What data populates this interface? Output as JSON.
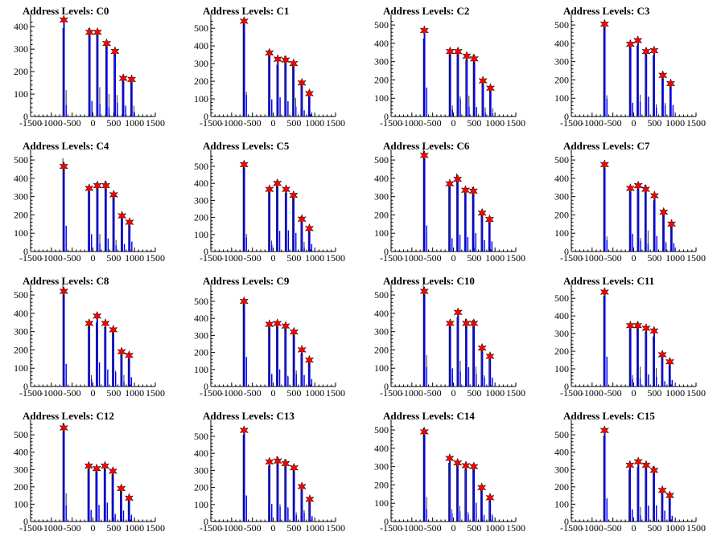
{
  "colors": {
    "bar": "#0000ff",
    "trace": "#000000",
    "marker": "#ff0000",
    "axis": "#000000"
  },
  "chart_data": [
    {
      "type": "bar",
      "title": "Address Levels: C0",
      "xlim": [
        -1500,
        1500
      ],
      "ylim": [
        0,
        440
      ],
      "xticks": [
        "-1500",
        "-1000",
        "-500",
        "0",
        "500",
        "1000",
        "1500"
      ],
      "yticks": [
        "0",
        "100",
        "200",
        "300",
        "400"
      ],
      "peaks": [
        {
          "x": -700,
          "y": 430
        },
        {
          "x": -80,
          "y": 375
        },
        {
          "x": 110,
          "y": 375
        },
        {
          "x": 330,
          "y": 325
        },
        {
          "x": 530,
          "y": 290
        },
        {
          "x": 730,
          "y": 170
        },
        {
          "x": 930,
          "y": 165
        }
      ]
    },
    {
      "type": "bar",
      "title": "Address Levels: C1",
      "xlim": [
        -1500,
        1500
      ],
      "ylim": [
        0,
        560
      ],
      "xticks": [
        "-1500",
        "-1000",
        "-500",
        "0",
        "500",
        "1000",
        "1500"
      ],
      "yticks": [
        "0",
        "100",
        "200",
        "300",
        "400",
        "500"
      ],
      "peaks": [
        {
          "x": -700,
          "y": 540
        },
        {
          "x": -90,
          "y": 360
        },
        {
          "x": 110,
          "y": 325
        },
        {
          "x": 300,
          "y": 320
        },
        {
          "x": 490,
          "y": 300
        },
        {
          "x": 690,
          "y": 190
        },
        {
          "x": 870,
          "y": 130
        }
      ]
    },
    {
      "type": "bar",
      "title": "Address Levels: C2",
      "xlim": [
        -1500,
        1500
      ],
      "ylim": [
        0,
        540
      ],
      "xticks": [
        "-1500",
        "-1000",
        "-500",
        "0",
        "500",
        "1000",
        "1500"
      ],
      "yticks": [
        "0",
        "100",
        "200",
        "300",
        "400",
        "500"
      ],
      "peaks": [
        {
          "x": -700,
          "y": 470
        },
        {
          "x": -80,
          "y": 355
        },
        {
          "x": 110,
          "y": 355
        },
        {
          "x": 320,
          "y": 330
        },
        {
          "x": 500,
          "y": 315
        },
        {
          "x": 710,
          "y": 195
        },
        {
          "x": 890,
          "y": 155
        }
      ]
    },
    {
      "type": "bar",
      "title": "Address Levels: C3",
      "xlim": [
        -1500,
        1500
      ],
      "ylim": [
        0,
        540
      ],
      "xticks": [
        "-1500",
        "-1000",
        "-500",
        "0",
        "500",
        "1000",
        "1500"
      ],
      "yticks": [
        "0",
        "100",
        "200",
        "300",
        "400",
        "500"
      ],
      "peaks": [
        {
          "x": -700,
          "y": 505
        },
        {
          "x": -80,
          "y": 395
        },
        {
          "x": 100,
          "y": 415
        },
        {
          "x": 300,
          "y": 355
        },
        {
          "x": 490,
          "y": 360
        },
        {
          "x": 700,
          "y": 225
        },
        {
          "x": 890,
          "y": 180
        }
      ]
    },
    {
      "type": "bar",
      "title": "Address Levels: C4",
      "xlim": [
        -1500,
        1500
      ],
      "ylim": [
        0,
        540
      ],
      "xticks": [
        "-1500",
        "-1000",
        "-500",
        "0",
        "500",
        "1000",
        "1500"
      ],
      "yticks": [
        "0",
        "100",
        "200",
        "300",
        "400",
        "500"
      ],
      "peaks": [
        {
          "x": -700,
          "y": 465
        },
        {
          "x": -90,
          "y": 345
        },
        {
          "x": 110,
          "y": 360
        },
        {
          "x": 310,
          "y": 360
        },
        {
          "x": 500,
          "y": 310
        },
        {
          "x": 700,
          "y": 195
        },
        {
          "x": 880,
          "y": 160
        }
      ]
    },
    {
      "type": "bar",
      "title": "Address Levels: C5",
      "xlim": [
        -1500,
        1500
      ],
      "ylim": [
        0,
        580
      ],
      "xticks": [
        "-1500",
        "-1000",
        "-500",
        "0",
        "500",
        "1000",
        "1500"
      ],
      "yticks": [
        "0",
        "100",
        "200",
        "300",
        "400",
        "500"
      ],
      "peaks": [
        {
          "x": -700,
          "y": 510
        },
        {
          "x": -90,
          "y": 365
        },
        {
          "x": 100,
          "y": 400
        },
        {
          "x": 310,
          "y": 365
        },
        {
          "x": 490,
          "y": 330
        },
        {
          "x": 690,
          "y": 190
        },
        {
          "x": 870,
          "y": 135
        }
      ]
    },
    {
      "type": "bar",
      "title": "Address Levels: C6",
      "xlim": [
        -1500,
        1500
      ],
      "ylim": [
        0,
        540
      ],
      "xticks": [
        "-1500",
        "-1000",
        "-500",
        "0",
        "500",
        "1000",
        "1500"
      ],
      "yticks": [
        "0",
        "100",
        "200",
        "300",
        "400",
        "500"
      ],
      "peaks": [
        {
          "x": -700,
          "y": 525
        },
        {
          "x": -90,
          "y": 370
        },
        {
          "x": 100,
          "y": 395
        },
        {
          "x": 290,
          "y": 335
        },
        {
          "x": 480,
          "y": 330
        },
        {
          "x": 690,
          "y": 210
        },
        {
          "x": 870,
          "y": 175
        }
      ]
    },
    {
      "type": "bar",
      "title": "Address Levels: C7",
      "xlim": [
        -1500,
        1500
      ],
      "ylim": [
        0,
        540
      ],
      "xticks": [
        "-1500",
        "-1000",
        "-500",
        "0",
        "500",
        "1000",
        "1500"
      ],
      "yticks": [
        "0",
        "100",
        "200",
        "300",
        "400",
        "500"
      ],
      "peaks": [
        {
          "x": -700,
          "y": 475
        },
        {
          "x": -80,
          "y": 345
        },
        {
          "x": 110,
          "y": 360
        },
        {
          "x": 290,
          "y": 340
        },
        {
          "x": 500,
          "y": 305
        },
        {
          "x": 720,
          "y": 215
        },
        {
          "x": 910,
          "y": 150
        }
      ]
    },
    {
      "type": "bar",
      "title": "Address Levels: C8",
      "xlim": [
        -1500,
        1500
      ],
      "ylim": [
        0,
        540
      ],
      "xticks": [
        "-1500",
        "-1000",
        "-500",
        "0",
        "500",
        "1000",
        "1500"
      ],
      "yticks": [
        "0",
        "100",
        "200",
        "300",
        "400",
        "500"
      ],
      "peaks": [
        {
          "x": -700,
          "y": 520
        },
        {
          "x": -90,
          "y": 345
        },
        {
          "x": 100,
          "y": 385
        },
        {
          "x": 300,
          "y": 345
        },
        {
          "x": 490,
          "y": 310
        },
        {
          "x": 690,
          "y": 190
        },
        {
          "x": 870,
          "y": 170
        }
      ]
    },
    {
      "type": "bar",
      "title": "Address Levels: C9",
      "xlim": [
        -1500,
        1500
      ],
      "ylim": [
        0,
        580
      ],
      "xticks": [
        "-1500",
        "-1000",
        "-500",
        "0",
        "500",
        "1000",
        "1500"
      ],
      "yticks": [
        "0",
        "100",
        "200",
        "300",
        "400",
        "500"
      ],
      "peaks": [
        {
          "x": -700,
          "y": 500
        },
        {
          "x": -90,
          "y": 365
        },
        {
          "x": 100,
          "y": 370
        },
        {
          "x": 300,
          "y": 355
        },
        {
          "x": 500,
          "y": 320
        },
        {
          "x": 690,
          "y": 215
        },
        {
          "x": 870,
          "y": 155
        }
      ]
    },
    {
      "type": "bar",
      "title": "Address Levels: C10",
      "xlim": [
        -1500,
        1500
      ],
      "ylim": [
        0,
        540
      ],
      "xticks": [
        "-1500",
        "-1000",
        "-500",
        "0",
        "500",
        "1000",
        "1500"
      ],
      "yticks": [
        "0",
        "100",
        "200",
        "300",
        "400",
        "500"
      ],
      "peaks": [
        {
          "x": -700,
          "y": 520
        },
        {
          "x": -80,
          "y": 345
        },
        {
          "x": 110,
          "y": 405
        },
        {
          "x": 310,
          "y": 345
        },
        {
          "x": 490,
          "y": 345
        },
        {
          "x": 690,
          "y": 210
        },
        {
          "x": 880,
          "y": 165
        }
      ]
    },
    {
      "type": "bar",
      "title": "Address Levels: C11",
      "xlim": [
        -1500,
        1500
      ],
      "ylim": [
        0,
        560
      ],
      "xticks": [
        "-1500",
        "-1000",
        "-500",
        "0",
        "500",
        "1000",
        "1500"
      ],
      "yticks": [
        "0",
        "100",
        "200",
        "300",
        "400",
        "500"
      ],
      "peaks": [
        {
          "x": -700,
          "y": 535
        },
        {
          "x": -80,
          "y": 345
        },
        {
          "x": 100,
          "y": 345
        },
        {
          "x": 300,
          "y": 330
        },
        {
          "x": 490,
          "y": 315
        },
        {
          "x": 690,
          "y": 180
        },
        {
          "x": 870,
          "y": 140
        }
      ]
    },
    {
      "type": "bar",
      "title": "Address Levels: C12",
      "xlim": [
        -1500,
        1500
      ],
      "ylim": [
        0,
        570
      ],
      "xticks": [
        "-1500",
        "-1000",
        "-500",
        "0",
        "500",
        "1000",
        "1500"
      ],
      "yticks": [
        "0",
        "100",
        "200",
        "300",
        "400",
        "500"
      ],
      "peaks": [
        {
          "x": -700,
          "y": 540
        },
        {
          "x": -100,
          "y": 320
        },
        {
          "x": 90,
          "y": 305
        },
        {
          "x": 290,
          "y": 320
        },
        {
          "x": 480,
          "y": 290
        },
        {
          "x": 680,
          "y": 190
        },
        {
          "x": 870,
          "y": 135
        }
      ]
    },
    {
      "type": "bar",
      "title": "Address Levels: C13",
      "xlim": [
        -1500,
        1500
      ],
      "ylim": [
        0,
        580
      ],
      "xticks": [
        "-1500",
        "-1000",
        "-500",
        "0",
        "500",
        "1000",
        "1500"
      ],
      "yticks": [
        "0",
        "100",
        "200",
        "300",
        "400",
        "500"
      ],
      "peaks": [
        {
          "x": -700,
          "y": 535
        },
        {
          "x": -90,
          "y": 350
        },
        {
          "x": 110,
          "y": 355
        },
        {
          "x": 300,
          "y": 340
        },
        {
          "x": 500,
          "y": 315
        },
        {
          "x": 690,
          "y": 205
        },
        {
          "x": 880,
          "y": 130
        }
      ]
    },
    {
      "type": "bar",
      "title": "Address Levels: C14",
      "xlim": [
        -1500,
        1500
      ],
      "ylim": [
        0,
        540
      ],
      "xticks": [
        "-1500",
        "-1000",
        "-500",
        "0",
        "500",
        "1000",
        "1500"
      ],
      "yticks": [
        "0",
        "100",
        "200",
        "300",
        "400",
        "500"
      ],
      "peaks": [
        {
          "x": -700,
          "y": 490
        },
        {
          "x": -90,
          "y": 345
        },
        {
          "x": 100,
          "y": 320
        },
        {
          "x": 300,
          "y": 305
        },
        {
          "x": 490,
          "y": 300
        },
        {
          "x": 680,
          "y": 185
        },
        {
          "x": 880,
          "y": 130
        }
      ]
    },
    {
      "type": "bar",
      "title": "Address Levels: C15",
      "xlim": [
        -1500,
        1500
      ],
      "ylim": [
        0,
        570
      ],
      "xticks": [
        "-1500",
        "-1000",
        "-500",
        "0",
        "500",
        "1000",
        "1500"
      ],
      "yticks": [
        "0",
        "100",
        "200",
        "300",
        "400",
        "500"
      ],
      "peaks": [
        {
          "x": -700,
          "y": 525
        },
        {
          "x": -90,
          "y": 325
        },
        {
          "x": 110,
          "y": 345
        },
        {
          "x": 300,
          "y": 325
        },
        {
          "x": 490,
          "y": 295
        },
        {
          "x": 690,
          "y": 180
        },
        {
          "x": 870,
          "y": 150
        }
      ]
    }
  ]
}
